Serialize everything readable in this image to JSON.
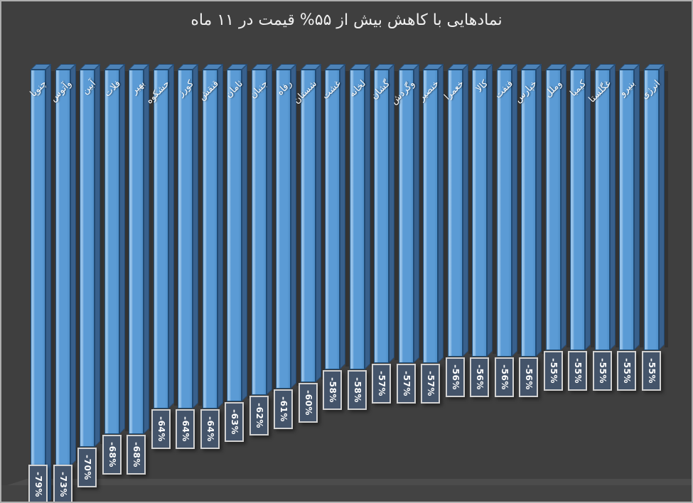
{
  "window": {
    "background_color": "#3f3f3f",
    "frame_border_color": "#aeaeae"
  },
  "chart_data": {
    "type": "bar",
    "style": "3d-column",
    "direction": "negative-down",
    "title": "نمادهایی با کاهش بیش از ۵۵% قیمت در ۱۱ ماه",
    "title_color": "#efefef",
    "categories": [
      "چنوپا",
      "وآتوس",
      "آبین",
      "فلات",
      "بهیر",
      "حشکوه",
      "کورز",
      "قنقش",
      "ثامان",
      "جنبان",
      "رفاه",
      "شستان",
      "غشت",
      "لخانه",
      "گشان",
      "وگردش",
      "خنصیر",
      "خعمرا",
      "کالا",
      "فنفت",
      "خپارس",
      "وملل",
      "کیمیا",
      "غگلستا",
      "بنیرو",
      "انرژی"
    ],
    "values": [
      -79,
      -73,
      -70,
      -68,
      -68,
      -64,
      -64,
      -64,
      -63,
      -62,
      -61,
      -60,
      -58,
      -58,
      -57,
      -57,
      -57,
      -56,
      -56,
      -56,
      -56,
      -55,
      -55,
      -55,
      -55,
      -55
    ],
    "value_labels": [
      "-79%",
      "-73%",
      "-70%",
      "-68%",
      "-68%",
      "-64%",
      "-64%",
      "-64%",
      "-63%",
      "-62%",
      "-61%",
      "-60%",
      "-58%",
      "-58%",
      "-57%",
      "-57%",
      "-57%",
      "-56%",
      "-56%",
      "-56%",
      "-56%",
      "-55%",
      "-55%",
      "-55%",
      "-55%",
      "-55%"
    ],
    "xlabel": "",
    "ylabel": "",
    "ylim": [
      -80,
      -10
    ],
    "gridlines": false,
    "legend": "none",
    "bar_face_color": "#5b9bd5",
    "bar_highlight_color": "#93c0e8",
    "bar_side_color": "#38608c",
    "bar_top_color": "#4d83b8",
    "bar_outline_color": "#1f4e79",
    "category_label_color": "#ffffff",
    "value_box_fill": "#44546a",
    "value_box_border": "#d2d2d2",
    "value_text_color": "#ffffff"
  }
}
